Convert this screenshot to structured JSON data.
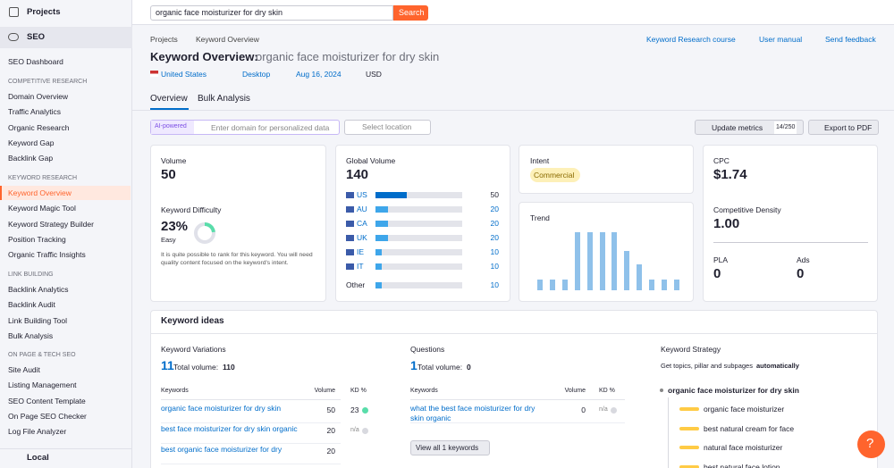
{
  "search": {
    "query": "organic face moisturizer for dry skin",
    "button": "Search"
  },
  "sidebar": {
    "projects": "Projects",
    "seo": "SEO",
    "dashboard": "SEO Dashboard",
    "active": "Keyword Overview",
    "groups": [
      {
        "title": "COMPETITIVE RESEARCH",
        "items": [
          "Domain Overview",
          "Traffic Analytics",
          "Organic Research",
          "Keyword Gap",
          "Backlink Gap"
        ]
      },
      {
        "title": "KEYWORD RESEARCH",
        "items": [
          "Keyword Overview",
          "Keyword Magic Tool",
          "Keyword Strategy Builder",
          "Position Tracking",
          "Organic Traffic Insights"
        ]
      },
      {
        "title": "LINK BUILDING",
        "items": [
          "Backlink Analytics",
          "Backlink Audit",
          "Link Building Tool",
          "Bulk Analysis"
        ]
      },
      {
        "title": "ON PAGE & TECH SEO",
        "items": [
          "Site Audit",
          "Listing Management",
          "SEO Content Template",
          "On Page SEO Checker",
          "Log File Analyzer"
        ]
      }
    ],
    "local": "Local"
  },
  "breadcrumb": [
    "Projects",
    "Keyword Overview"
  ],
  "links": [
    "Keyword Research course",
    "User manual",
    "Send feedback"
  ],
  "header": {
    "title": "Keyword Overview:",
    "keyword": "organic face moisturizer for dry skin",
    "country": "United States",
    "device": "Desktop",
    "date": "Aug 16, 2024",
    "currency": "USD"
  },
  "tabs": [
    "Overview",
    "Bulk Analysis"
  ],
  "toolbar": {
    "badge": "AI-powered",
    "domain_placeholder": "Enter domain for personalized data",
    "location": "Select location",
    "update": "Update metrics",
    "quota": "14/250",
    "export": "Export to PDF"
  },
  "volume": {
    "label": "Volume",
    "value": 50
  },
  "difficulty": {
    "label": "Keyword Difficulty",
    "value": 23,
    "value_label": "23%",
    "level": "Easy",
    "note": "It is quite possible to rank for this keyword. You will need quality content focused on the keyword's intent."
  },
  "global": {
    "label": "Global Volume",
    "total": 140,
    "rows": [
      {
        "country": "US",
        "value": 50
      },
      {
        "country": "AU",
        "value": 20
      },
      {
        "country": "CA",
        "value": 20
      },
      {
        "country": "UK",
        "value": 20
      },
      {
        "country": "IE",
        "value": 10
      },
      {
        "country": "IT",
        "value": 10
      },
      {
        "country": "Other",
        "value": 10
      }
    ]
  },
  "intent": {
    "label": "Intent",
    "value": "Commercial"
  },
  "trend": {
    "label": "Trend",
    "ylim": [
      0,
      100
    ],
    "values": [
      18,
      18,
      18,
      100,
      100,
      100,
      100,
      67,
      45,
      18,
      18,
      18
    ]
  },
  "cpc": {
    "label": "CPC",
    "value": "$1.74"
  },
  "density": {
    "label": "Competitive Density",
    "value": 1,
    "value_label": "1.00"
  },
  "pla": {
    "label": "PLA",
    "value": 0
  },
  "ads": {
    "label": "Ads",
    "value": 0
  },
  "ideas": {
    "title": "Keyword ideas",
    "variations": {
      "title": "Keyword Variations",
      "count": 11,
      "total_label": "Total volume:",
      "total": 110,
      "columns": [
        "Keywords",
        "Volume",
        "KD %"
      ],
      "rows": [
        {
          "keyword": "organic face moisturizer for dry skin",
          "volume": 50,
          "kd": 23
        },
        {
          "keyword": "best face moisturizer for dry skin organic",
          "volume": 20,
          "kd": "n/a"
        },
        {
          "keyword": "best organic face moisturizer for dry",
          "volume": 20
        }
      ]
    },
    "questions": {
      "title": "Questions",
      "count": 1,
      "total_label": "Total volume:",
      "total": 0,
      "columns": [
        "Keywords",
        "Volume",
        "KD %"
      ],
      "rows": [
        {
          "keyword": "what the best face moisturizer for dry skin organic",
          "volume": 0,
          "kd": "n/a"
        }
      ],
      "view_all": "View all 1 keywords"
    },
    "strategy": {
      "title": "Keyword Strategy",
      "subtitle": "Get topics, pillar and subpages",
      "emphasis": "automatically",
      "root": "organic face moisturizer for dry skin",
      "children": [
        "organic face moisturizer",
        "best natural cream for face",
        "natural face moisturizer",
        "best natural face lotion"
      ]
    }
  },
  "help": "?"
}
